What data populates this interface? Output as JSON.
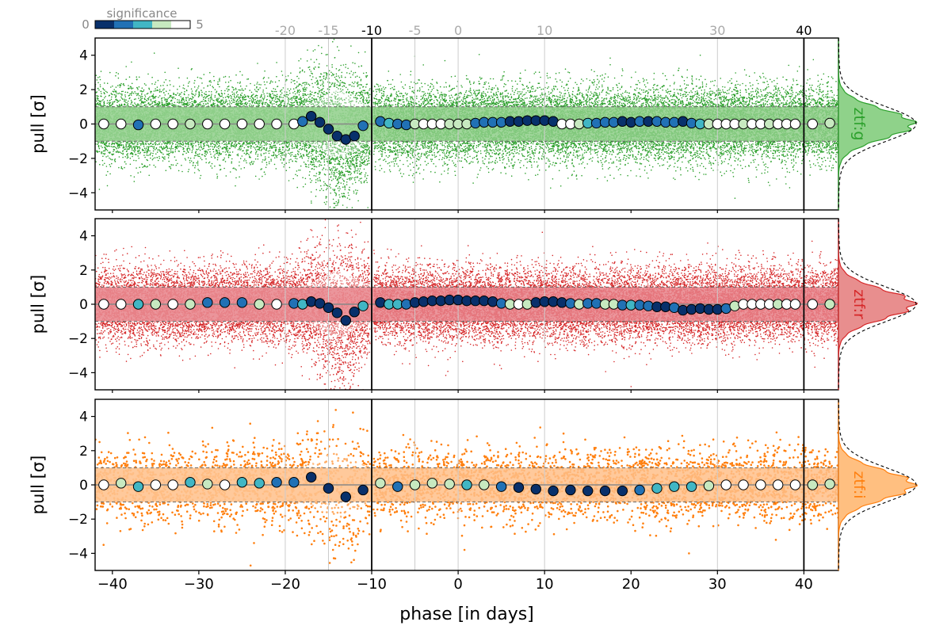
{
  "chart_data": {
    "type": "scatter",
    "xlabel": "phase [in days]",
    "ylabel": "pull [σ]",
    "xlim": [
      -42,
      44
    ],
    "ylim": [
      -5,
      5
    ],
    "x_ticks": [
      -40,
      -30,
      -20,
      -10,
      0,
      10,
      20,
      30,
      40
    ],
    "x_tick_labels": [
      "−40",
      "−30",
      "−20",
      "−10",
      "0",
      "10",
      "20",
      "30",
      "40"
    ],
    "y_ticks": [
      -4,
      -2,
      0,
      2,
      4
    ],
    "y_tick_labels": [
      "−4",
      "−2",
      "0",
      "2",
      "4"
    ],
    "vertical_lines": [
      -10,
      40
    ],
    "phase_grid": [
      -20,
      -15,
      -5,
      0,
      10,
      30
    ],
    "top_ticks": [
      {
        "x": -20,
        "label": "-20",
        "color": "#aaaaaa"
      },
      {
        "x": -15,
        "label": "-15",
        "color": "#aaaaaa"
      },
      {
        "x": -10,
        "label": "-10",
        "color": "#000000"
      },
      {
        "x": -5,
        "label": "-5",
        "color": "#aaaaaa"
      },
      {
        "x": 0,
        "label": "0",
        "color": "#aaaaaa"
      },
      {
        "x": 10,
        "label": "10",
        "color": "#aaaaaa"
      },
      {
        "x": 30,
        "label": "30",
        "color": "#aaaaaa"
      },
      {
        "x": 40,
        "label": "40",
        "color": "#000000"
      }
    ],
    "colorbar": {
      "label": "significance",
      "min_label": "0",
      "max_label": "5",
      "colors": [
        "#08306b",
        "#2171b5",
        "#41b6c4",
        "#c7e9c0",
        "#ffffff"
      ]
    },
    "panels": [
      {
        "band": "ztf:g",
        "color": "#2ca02c",
        "band_fill": "#8fcf8a",
        "hist_fill": "#8fd28a",
        "medians_x": [
          -41,
          -39,
          -37,
          -35,
          -33,
          -31,
          -29,
          -27,
          -25,
          -23,
          -21,
          -19,
          -18,
          -17,
          -16,
          -15,
          -14,
          -13,
          -12,
          -11,
          -9,
          -8,
          -7,
          -6,
          -5,
          -4,
          -3,
          -2,
          -1,
          0,
          1,
          2,
          3,
          4,
          5,
          6,
          7,
          8,
          9,
          10,
          11,
          12,
          13,
          14,
          15,
          16,
          17,
          18,
          19,
          20,
          21,
          22,
          23,
          24,
          25,
          26,
          27,
          28,
          29,
          30,
          31,
          32,
          33,
          34,
          35,
          36,
          37,
          38,
          39,
          41,
          43
        ],
        "medians_y": [
          0,
          0,
          -0.05,
          0,
          0,
          0,
          0,
          0,
          0,
          0,
          0,
          0,
          0.15,
          0.45,
          0.1,
          -0.3,
          -0.7,
          -0.9,
          -0.7,
          -0.1,
          0.15,
          0.05,
          0,
          -0.05,
          0,
          0,
          0,
          0,
          0,
          0,
          0,
          0.05,
          0.1,
          0.1,
          0.1,
          0.15,
          0.15,
          0.2,
          0.2,
          0.2,
          0.15,
          0,
          0,
          0,
          0.05,
          0.05,
          0.1,
          0.1,
          0.15,
          0.1,
          0.15,
          0.15,
          0.15,
          0.1,
          0.1,
          0.15,
          0.05,
          0,
          0,
          0,
          0,
          0,
          0,
          0,
          0,
          0,
          0,
          0,
          0,
          0,
          0.05
        ],
        "medians_sig": [
          4,
          4,
          1,
          4,
          4,
          3,
          4,
          4,
          4,
          4,
          4,
          4,
          1,
          0,
          0,
          0,
          0,
          0,
          0,
          1,
          1,
          2,
          1,
          1,
          3,
          4,
          4,
          4,
          3,
          3,
          3,
          1,
          1,
          1,
          1,
          0,
          0,
          0,
          0,
          0,
          0,
          4,
          4,
          3,
          2,
          1,
          1,
          1,
          0,
          0,
          1,
          0,
          1,
          1,
          1,
          0,
          1,
          2,
          3,
          4,
          4,
          4,
          3,
          4,
          4,
          3,
          4,
          4,
          4,
          4,
          3
        ]
      },
      {
        "band": "ztf:r",
        "color": "#d62728",
        "band_fill": "#e8838a",
        "hist_fill": "#e88e8e",
        "medians_x": [
          -41,
          -39,
          -37,
          -35,
          -33,
          -31,
          -29,
          -27,
          -25,
          -23,
          -21,
          -19,
          -18,
          -17,
          -16,
          -15,
          -14,
          -13,
          -12,
          -11,
          -9,
          -8,
          -7,
          -6,
          -5,
          -4,
          -3,
          -2,
          -1,
          0,
          1,
          2,
          3,
          4,
          5,
          6,
          7,
          8,
          9,
          10,
          11,
          12,
          13,
          14,
          15,
          16,
          17,
          18,
          19,
          20,
          21,
          22,
          23,
          24,
          25,
          26,
          27,
          28,
          29,
          30,
          31,
          32,
          33,
          34,
          35,
          36,
          37,
          38,
          39,
          41,
          43
        ],
        "medians_y": [
          0,
          0,
          0,
          0,
          0,
          0,
          0.1,
          0.1,
          0.1,
          0,
          0,
          0.05,
          0,
          0.15,
          0.05,
          -0.2,
          -0.5,
          -0.95,
          -0.45,
          -0.1,
          0.1,
          0,
          0,
          0,
          0.1,
          0.15,
          0.2,
          0.2,
          0.25,
          0.25,
          0.2,
          0.2,
          0.2,
          0.15,
          0.05,
          0,
          0,
          0,
          0.1,
          0.15,
          0.15,
          0.1,
          0.05,
          0,
          0.05,
          0.05,
          0,
          0,
          -0.05,
          -0.05,
          -0.05,
          -0.1,
          -0.15,
          -0.15,
          -0.2,
          -0.35,
          -0.3,
          -0.25,
          -0.3,
          -0.3,
          -0.25,
          -0.1,
          0,
          0,
          0,
          0,
          0,
          0,
          0,
          0,
          0
        ],
        "medians_sig": [
          4,
          4,
          2,
          3,
          4,
          3,
          1,
          1,
          1,
          3,
          4,
          1,
          2,
          0,
          0,
          0,
          0,
          0,
          0,
          2,
          0,
          2,
          2,
          1,
          0,
          0,
          0,
          0,
          0,
          0,
          0,
          0,
          0,
          0,
          1,
          3,
          4,
          3,
          0,
          0,
          0,
          0,
          1,
          3,
          1,
          1,
          3,
          3,
          1,
          2,
          1,
          1,
          0,
          0,
          1,
          0,
          0,
          0,
          0,
          0,
          1,
          3,
          4,
          4,
          4,
          4,
          3,
          4,
          4,
          4,
          3
        ]
      },
      {
        "band": "ztf:i",
        "color": "#ff7f0e",
        "band_fill": "#ffc08a",
        "hist_fill": "#ffbf80",
        "medians_x": [
          -41,
          -39,
          -37,
          -35,
          -33,
          -31,
          -29,
          -27,
          -25,
          -23,
          -21,
          -19,
          -17,
          -15,
          -13,
          -11,
          -9,
          -7,
          -5,
          -3,
          -1,
          1,
          3,
          5,
          7,
          9,
          11,
          13,
          15,
          17,
          19,
          21,
          23,
          25,
          27,
          29,
          31,
          33,
          35,
          37,
          39,
          41,
          43
        ],
        "medians_y": [
          0,
          0.1,
          -0.1,
          0,
          0,
          0.15,
          0.05,
          0,
          0.15,
          0.1,
          0.15,
          0.15,
          0.45,
          -0.2,
          -0.7,
          -0.3,
          0.1,
          -0.1,
          0,
          0.1,
          0.05,
          0,
          0,
          -0.1,
          -0.15,
          -0.25,
          -0.35,
          -0.3,
          -0.35,
          -0.35,
          -0.35,
          -0.3,
          -0.2,
          -0.1,
          -0.1,
          -0.05,
          0,
          0,
          0,
          0,
          0,
          0,
          0.05
        ],
        "medians_sig": [
          4,
          3,
          2,
          4,
          4,
          2,
          3,
          4,
          2,
          2,
          1,
          1,
          0,
          0,
          0,
          0,
          3,
          1,
          3,
          3,
          3,
          2,
          3,
          1,
          0,
          0,
          0,
          0,
          0,
          0,
          0,
          1,
          2,
          2,
          2,
          3,
          4,
          4,
          4,
          4,
          4,
          3,
          3
        ]
      }
    ]
  }
}
